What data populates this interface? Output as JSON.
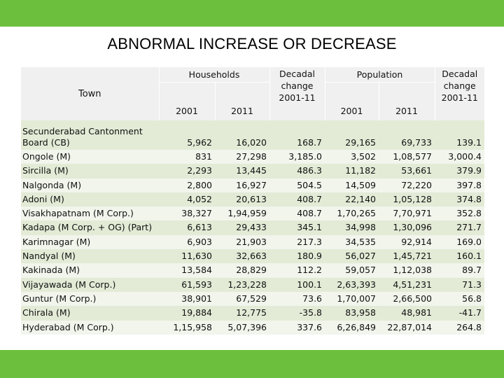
{
  "title": "ABNORMAL INCREASE OR DECREASE",
  "headers": {
    "town": "Town",
    "households": "Households",
    "decadal_change_line1": "Decadal",
    "decadal_change_line2": "change",
    "decadal_change_line3": "2001-11",
    "population": "Population",
    "year_2001": "2001",
    "year_2011": "2011"
  },
  "rows": [
    {
      "town": "Secunderabad Cantonment Board (CB)",
      "hh2001": "5,962",
      "hh2011": "16,020",
      "hh_change": "168.7",
      "pop2001": "29,165",
      "pop2011": "69,733",
      "pop_change": "139.1"
    },
    {
      "town": "Ongole (M)",
      "hh2001": "831",
      "hh2011": "27,298",
      "hh_change": "3,185.0",
      "pop2001": "3,502",
      "pop2011": "1,08,577",
      "pop_change": "3,000.4"
    },
    {
      "town": "Sircilla (M)",
      "hh2001": "2,293",
      "hh2011": "13,445",
      "hh_change": "486.3",
      "pop2001": "11,182",
      "pop2011": "53,661",
      "pop_change": "379.9"
    },
    {
      "town": "Nalgonda (M)",
      "hh2001": "2,800",
      "hh2011": "16,927",
      "hh_change": "504.5",
      "pop2001": "14,509",
      "pop2011": "72,220",
      "pop_change": "397.8"
    },
    {
      "town": "Adoni (M)",
      "hh2001": "4,052",
      "hh2011": "20,613",
      "hh_change": "408.7",
      "pop2001": "22,140",
      "pop2011": "1,05,128",
      "pop_change": "374.8"
    },
    {
      "town": "Visakhapatnam (M Corp.)",
      "hh2001": "38,327",
      "hh2011": "1,94,959",
      "hh_change": "408.7",
      "pop2001": "1,70,265",
      "pop2011": "7,70,971",
      "pop_change": "352.8"
    },
    {
      "town": "Kadapa (M Corp. + OG) (Part)",
      "hh2001": "6,613",
      "hh2011": "29,433",
      "hh_change": "345.1",
      "pop2001": "34,998",
      "pop2011": "1,30,096",
      "pop_change": "271.7"
    },
    {
      "town": "Karimnagar (M)",
      "hh2001": "6,903",
      "hh2011": "21,903",
      "hh_change": "217.3",
      "pop2001": "34,535",
      "pop2011": "92,914",
      "pop_change": "169.0"
    },
    {
      "town": "Nandyal (M)",
      "hh2001": "11,630",
      "hh2011": "32,663",
      "hh_change": "180.9",
      "pop2001": "56,027",
      "pop2011": "1,45,721",
      "pop_change": "160.1"
    },
    {
      "town": "Kakinada (M)",
      "hh2001": "13,584",
      "hh2011": "28,829",
      "hh_change": "112.2",
      "pop2001": "59,057",
      "pop2011": "1,12,038",
      "pop_change": "89.7"
    },
    {
      "town": "Vijayawada (M Corp.)",
      "hh2001": "61,593",
      "hh2011": "1,23,228",
      "hh_change": "100.1",
      "pop2001": "2,63,393",
      "pop2011": "4,51,231",
      "pop_change": "71.3"
    },
    {
      "town": "Guntur (M Corp.)",
      "hh2001": "38,901",
      "hh2011": "67,529",
      "hh_change": "73.6",
      "pop2001": "1,70,007",
      "pop2011": "2,66,500",
      "pop_change": "56.8"
    },
    {
      "town": "Chirala (M)",
      "hh2001": "19,884",
      "hh2011": "12,775",
      "hh_change": "-35.8",
      "pop2001": "83,958",
      "pop2011": "48,981",
      "pop_change": "-41.7"
    },
    {
      "town": "Hyderabad (M Corp.)",
      "hh2001": "1,15,958",
      "hh2011": "5,07,396",
      "hh_change": "337.6",
      "pop2001": "6,26,849",
      "pop2011": "22,87,014",
      "pop_change": "264.8"
    }
  ]
}
